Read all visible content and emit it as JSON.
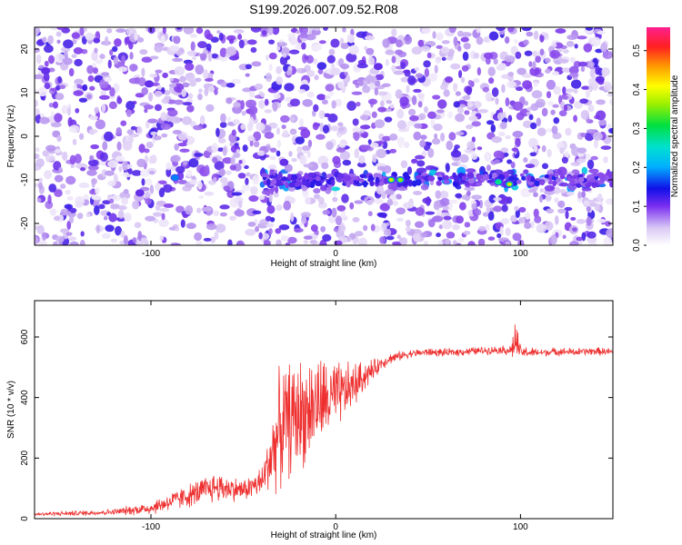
{
  "title": "S199.2026.007.09.52.R08",
  "chart_data": [
    {
      "type": "heatmap",
      "name": "spectrogram",
      "xlabel": "Height of straight line (km)",
      "ylabel": "Frequency (Hz)",
      "xlim": [
        -163,
        150
      ],
      "ylim": [
        -25,
        25
      ],
      "xticks": [
        -100,
        0,
        100
      ],
      "xtick_labels": [
        "-100",
        "0",
        "100"
      ],
      "yticks": [
        -20,
        -10,
        0,
        10,
        20
      ],
      "ytick_labels": [
        "-20",
        "-10",
        "0",
        "10",
        "20"
      ],
      "colorbar": {
        "label": "Normalized spectral amplitude",
        "range": [
          0,
          0.56
        ],
        "ticks": [
          0,
          0.1,
          0.2,
          0.3,
          0.4,
          0.5
        ],
        "tick_labels": [
          "0.0",
          "0.1",
          "0.2",
          "0.3",
          "0.4",
          "0.5"
        ]
      },
      "signal_band_hz": -10,
      "hotspots": [
        {
          "x": 30,
          "y": -10,
          "value": 0.4
        },
        {
          "x": 35,
          "y": -10,
          "value": 0.35
        },
        {
          "x": 94,
          "y": -11,
          "value": 0.45
        },
        {
          "x": 88,
          "y": -10.5,
          "value": 0.25
        },
        {
          "x": -87,
          "y": -9.5,
          "value": 0.18
        },
        {
          "x": -28,
          "y": -6,
          "value": 0.15
        },
        {
          "x": -157,
          "y": 15,
          "value": 0.15
        },
        {
          "x": -101,
          "y": 12,
          "value": 0.15
        },
        {
          "x": 23,
          "y": 16,
          "value": 0.14
        },
        {
          "x": 143,
          "y": 13,
          "value": 0.14
        },
        {
          "x": -106,
          "y": -13,
          "value": 0.14
        }
      ]
    },
    {
      "type": "line",
      "name": "snr",
      "xlabel": "Height of straight line (km)",
      "ylabel": "SNR (10 * v/v)",
      "xlim": [
        -163,
        150
      ],
      "ylim": [
        0,
        720
      ],
      "xticks": [
        -100,
        0,
        100
      ],
      "xtick_labels": [
        "-100",
        "0",
        "100"
      ],
      "yticks": [
        0,
        200,
        400,
        600
      ],
      "ytick_labels": [
        "0",
        "200",
        "400",
        "600"
      ],
      "series": [
        {
          "name": "SNR",
          "color": "#ee3030",
          "x": [
            -163,
            -140,
            -120,
            -100,
            -80,
            -65,
            -50,
            -40,
            -35,
            -30,
            -25,
            -20,
            -15,
            -10,
            -5,
            0,
            5,
            10,
            15,
            20,
            25,
            30,
            40,
            50,
            60,
            70,
            80,
            90,
            95,
            97,
            100,
            110,
            120,
            130,
            140,
            150
          ],
          "values": [
            15,
            18,
            22,
            35,
            75,
            105,
            95,
            120,
            210,
            300,
            330,
            345,
            360,
            380,
            390,
            400,
            420,
            440,
            470,
            490,
            515,
            530,
            545,
            550,
            548,
            552,
            555,
            558,
            555,
            590,
            550,
            548,
            552,
            550,
            553,
            550
          ],
          "noise_amplitude": [
            8,
            10,
            12,
            25,
            45,
            60,
            40,
            60,
            140,
            230,
            220,
            220,
            200,
            190,
            160,
            140,
            110,
            90,
            60,
            40,
            25,
            20,
            15,
            15,
            15,
            15,
            15,
            15,
            25,
            90,
            25,
            15,
            15,
            15,
            15,
            15
          ]
        }
      ]
    }
  ]
}
